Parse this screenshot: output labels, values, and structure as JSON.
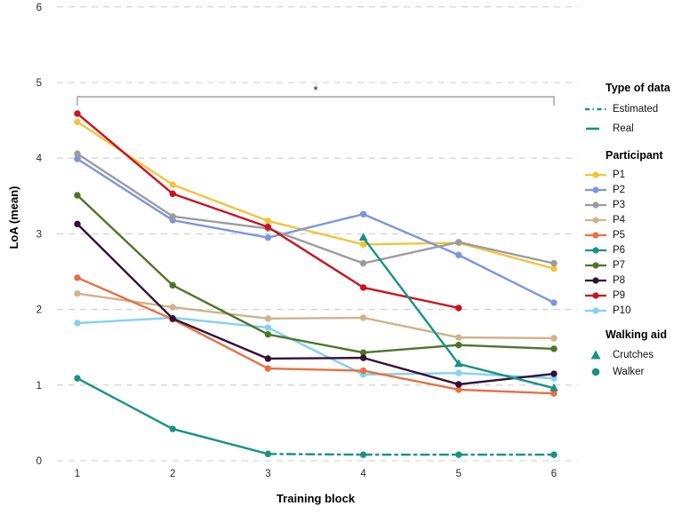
{
  "chart_data": {
    "type": "line",
    "xlabel": "Training block",
    "ylabel": "LoA (mean)",
    "x_ticks": [
      1,
      2,
      3,
      4,
      5,
      6
    ],
    "y_ticks": [
      0,
      1,
      2,
      3,
      4,
      5,
      6
    ],
    "ylim": [
      0,
      6
    ],
    "xlim": [
      1,
      6
    ],
    "grid": "horizontal-dashed",
    "significance": {
      "label": "*",
      "from_x": 1,
      "to_x": 6
    },
    "series": [
      {
        "name": "P1",
        "participant": "P1",
        "type_of_data": "real",
        "marker": "circle",
        "line": "solid",
        "color": "#F2C43B",
        "x": [
          1,
          2,
          3,
          4,
          5,
          6
        ],
        "values": [
          4.48,
          3.65,
          3.17,
          2.86,
          2.88,
          2.54
        ]
      },
      {
        "name": "P2",
        "participant": "P2",
        "type_of_data": "real",
        "marker": "circle",
        "line": "solid",
        "color": "#7B97DB",
        "x": [
          1,
          2,
          3,
          4,
          5,
          6
        ],
        "values": [
          3.99,
          3.18,
          2.95,
          3.26,
          2.72,
          2.09
        ]
      },
      {
        "name": "P3",
        "participant": "P3",
        "type_of_data": "real",
        "marker": "circle",
        "line": "solid",
        "color": "#9B9C9E",
        "x": [
          1,
          2,
          3,
          4,
          5,
          6
        ],
        "values": [
          4.06,
          3.23,
          3.07,
          2.61,
          2.89,
          2.61
        ]
      },
      {
        "name": "P4",
        "participant": "P4",
        "type_of_data": "real",
        "marker": "circle",
        "line": "solid",
        "color": "#CFB389",
        "x": [
          1,
          2,
          3,
          4,
          5,
          6
        ],
        "values": [
          2.21,
          2.03,
          1.88,
          1.89,
          1.63,
          1.62
        ]
      },
      {
        "name": "P10",
        "participant": "P10",
        "type_of_data": "real",
        "marker": "circle",
        "line": "solid",
        "color": "#82D2F0",
        "x": [
          1,
          2,
          3,
          4,
          5,
          6
        ],
        "values": [
          1.82,
          1.89,
          1.76,
          1.14,
          1.16,
          1.09
        ]
      },
      {
        "name": "P5",
        "participant": "P5",
        "type_of_data": "real",
        "marker": "circle",
        "line": "solid",
        "color": "#E96F41",
        "x": [
          1,
          2,
          3,
          4,
          5,
          6
        ],
        "values": [
          2.42,
          1.87,
          1.22,
          1.19,
          0.94,
          0.89
        ]
      },
      {
        "name": "P7",
        "participant": "P7",
        "type_of_data": "real",
        "marker": "circle",
        "line": "solid",
        "color": "#4D7528",
        "x": [
          1,
          2,
          3,
          4,
          5,
          6
        ],
        "values": [
          3.51,
          2.32,
          1.67,
          1.43,
          1.53,
          1.48
        ]
      },
      {
        "name": "P8",
        "participant": "P8",
        "type_of_data": "real",
        "marker": "circle",
        "line": "solid",
        "color": "#340E38",
        "x": [
          1,
          2,
          3,
          4,
          5,
          6
        ],
        "values": [
          3.13,
          1.88,
          1.35,
          1.36,
          1.01,
          1.15
        ]
      },
      {
        "name": "P9",
        "participant": "P9",
        "type_of_data": "real",
        "marker": "circle",
        "line": "solid",
        "color": "#CE1021",
        "x": [
          1,
          2,
          3,
          4,
          5
        ],
        "values": [
          4.59,
          3.53,
          3.09,
          2.29,
          2.02
        ]
      },
      {
        "name": "P6 walker real",
        "participant": "P6",
        "type_of_data": "real",
        "walking_aid": "Walker",
        "marker": "circle",
        "line": "solid",
        "color": "#189284",
        "x": [
          1,
          2,
          3
        ],
        "values": [
          1.09,
          0.42,
          0.09
        ]
      },
      {
        "name": "P6 walker estimated",
        "participant": "P6",
        "type_of_data": "estimated",
        "walking_aid": "Walker",
        "marker": "circle",
        "line": "dashdot",
        "color": "#189284",
        "x": [
          3,
          4,
          5,
          6
        ],
        "values": [
          0.09,
          0.08,
          0.08,
          0.08
        ],
        "markers_at": [
          4,
          5,
          6
        ]
      },
      {
        "name": "P6 crutches real",
        "participant": "P6",
        "type_of_data": "real",
        "walking_aid": "Crutches",
        "marker": "triangle",
        "line": "solid",
        "color": "#189284",
        "x": [
          4,
          5,
          6
        ],
        "values": [
          2.95,
          1.28,
          0.96
        ]
      }
    ]
  },
  "legend": {
    "type_of_data": {
      "title": "Type of data",
      "items": [
        {
          "label": "Estimated",
          "style": "dashdot-line",
          "color": "#189284"
        },
        {
          "label": "Real",
          "style": "solid-line",
          "color": "#189284"
        }
      ]
    },
    "participant": {
      "title": "Participant",
      "items": [
        {
          "label": "P1",
          "color": "#F2C43B"
        },
        {
          "label": "P2",
          "color": "#7B97DB"
        },
        {
          "label": "P3",
          "color": "#9B9C9E"
        },
        {
          "label": "P4",
          "color": "#CFB389"
        },
        {
          "label": "P5",
          "color": "#E96F41"
        },
        {
          "label": "P6",
          "color": "#189284"
        },
        {
          "label": "P7",
          "color": "#4D7528"
        },
        {
          "label": "P8",
          "color": "#340E38"
        },
        {
          "label": "P9",
          "color": "#CE1021"
        },
        {
          "label": "P10",
          "color": "#82D2F0"
        }
      ]
    },
    "walking_aid": {
      "title": "Walking aid",
      "items": [
        {
          "label": "Crutches",
          "shape": "triangle",
          "color": "#189284"
        },
        {
          "label": "Walker",
          "shape": "circle",
          "color": "#189284"
        }
      ]
    }
  }
}
